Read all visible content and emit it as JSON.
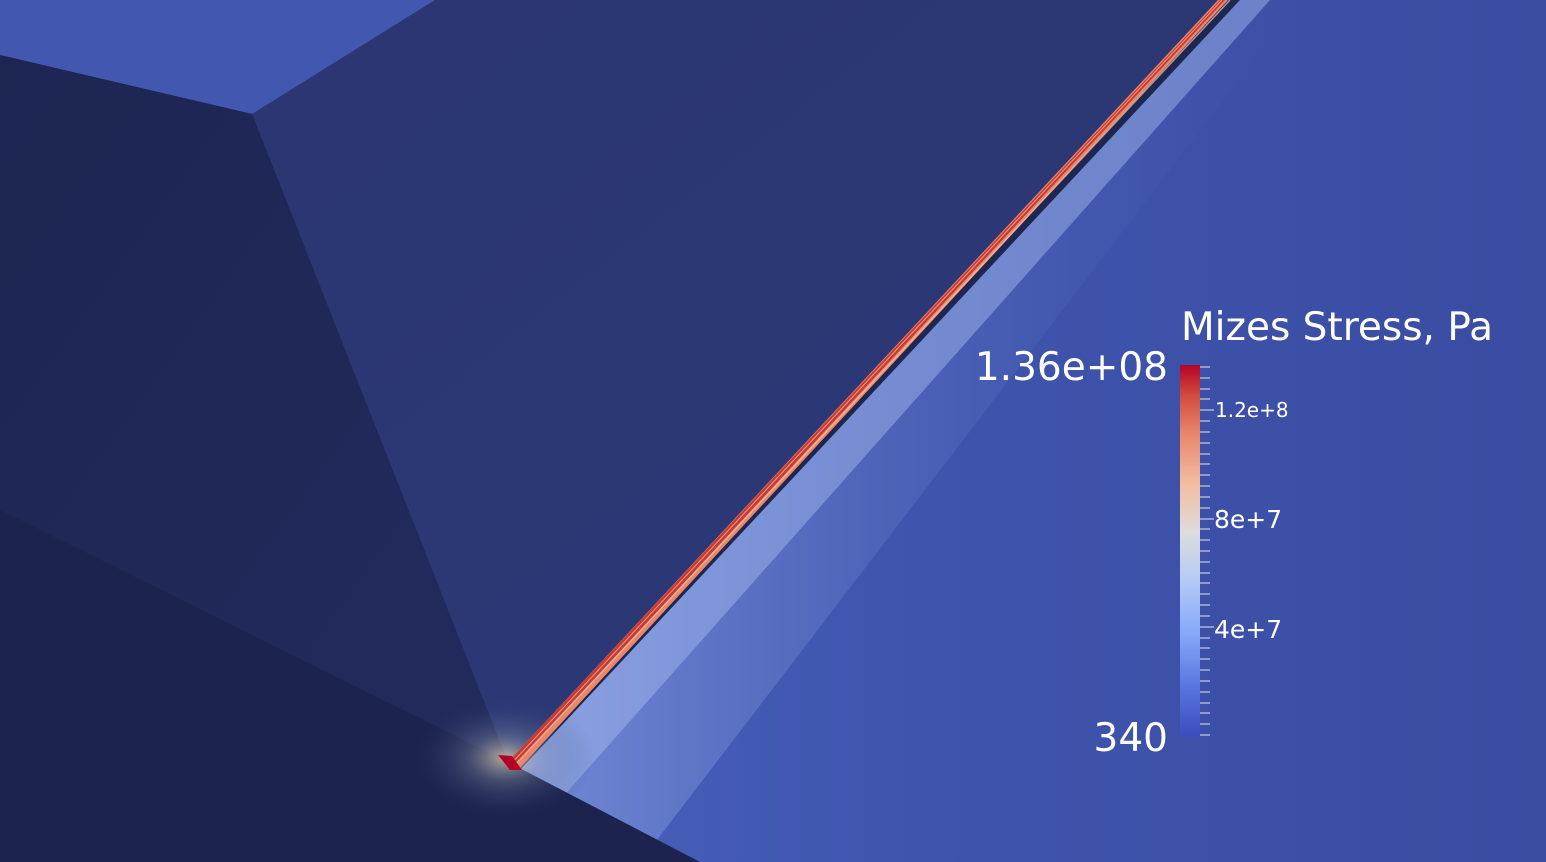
{
  "legend": {
    "title": "Mizes Stress, Pa",
    "max_label": "1.36e+08",
    "min_label": "340",
    "tick_labels": [
      "1.2e+8",
      "8e+7",
      "4e+7"
    ],
    "range": [
      340,
      136000000
    ],
    "colormap": [
      "#3b4cc0",
      "#6788ee",
      "#9abbff",
      "#c9d7f0",
      "#edd1c2",
      "#f7a889",
      "#e26952",
      "#b40426"
    ]
  },
  "colors": {
    "background": "#1e2652",
    "left_face": "#1f2755",
    "upper_face": "#2a3670",
    "top_face": "#4257b0",
    "right_face": "#3a4da6",
    "crack_high": "#b40426",
    "crack_mid": "#e8876a"
  }
}
